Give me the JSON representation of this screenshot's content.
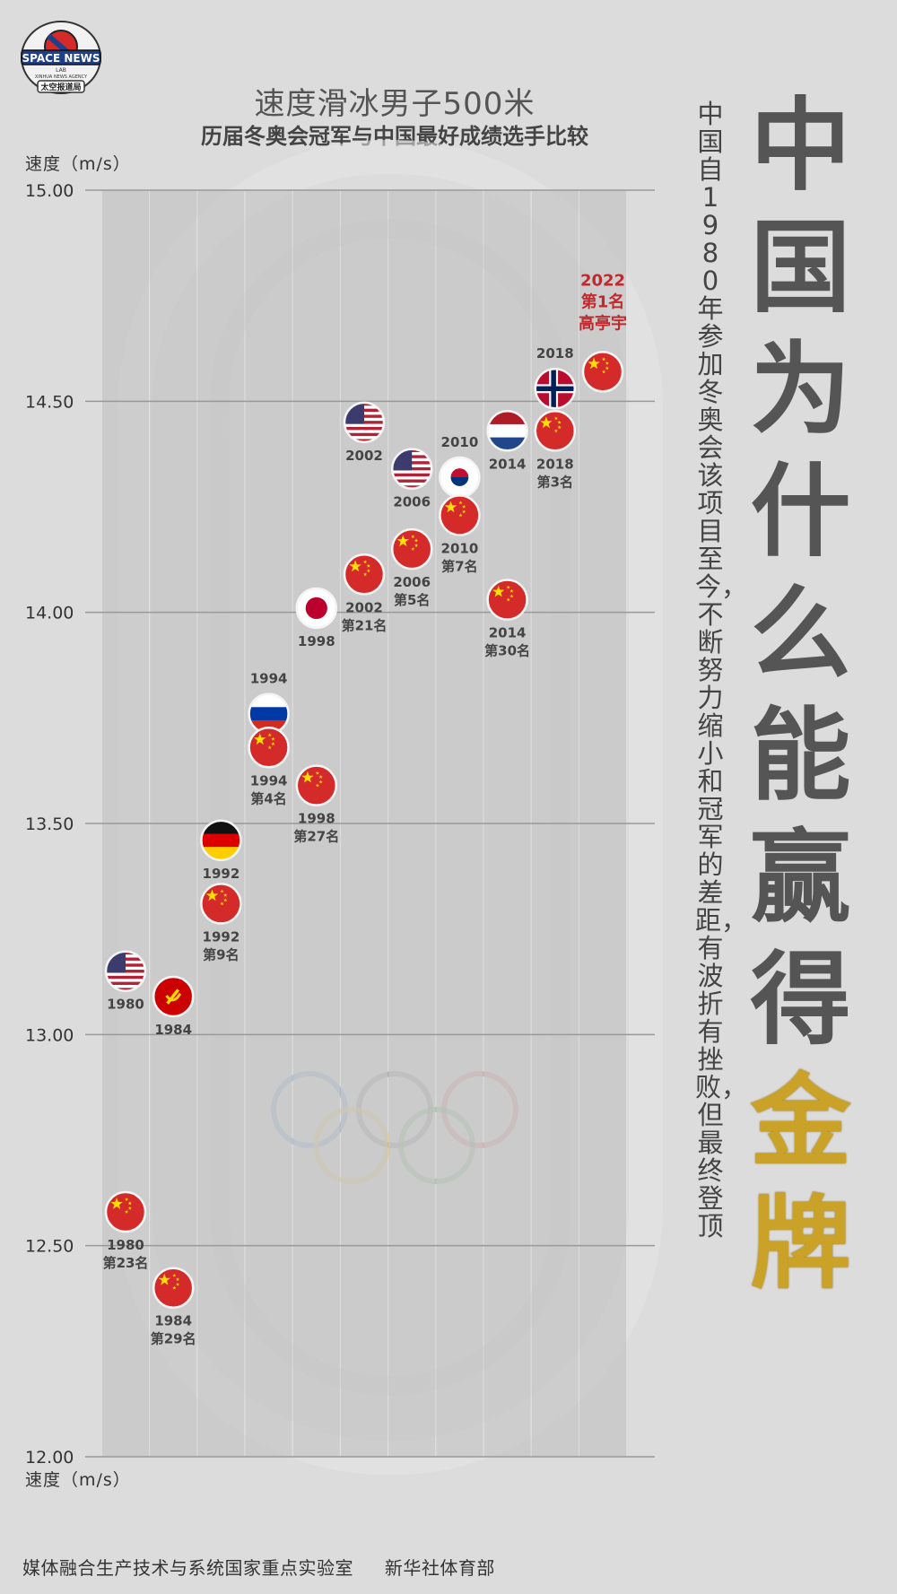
{
  "logo": {
    "name": "SPACE NEWS",
    "sub": "LAB",
    "ring_text": "XINHUA NEWS AGENCY",
    "caption": "太空报道局"
  },
  "title": "速度滑冰男子500米",
  "subtitle": "历届冬奥会冠军与中国最好成绩选手比较",
  "axis_label_top": "速度（m/s）",
  "axis_label_bottom": "速度（m/s）",
  "vertical_text": "中国自1980年参加冬奥会该项目至今，不断努力缩小和冠军的差距，有波折有挫败，但最终登顶",
  "big_title": {
    "part1": "中国为什么能赢得",
    "part2": "金牌"
  },
  "footer": {
    "left": "媒体融合生产技术与系统国家重点实验室",
    "right": "新华社体育部"
  },
  "colors": {
    "background": "#dcdcdc",
    "lane": "#c6c6c6",
    "china_red": "#d42a2a",
    "highlight": "#c0292e",
    "gold": "#c9a227"
  },
  "chart_data": {
    "type": "scatter",
    "ylabel": "速度（m/s）",
    "ylim": [
      12.0,
      15.0
    ],
    "yticks": [
      "12.00",
      "12.50",
      "13.00",
      "13.50",
      "14.00",
      "14.50",
      "15.00"
    ],
    "grid": true,
    "columns": [
      "1980",
      "1984",
      "1992",
      "1994",
      "1998",
      "2002",
      "2006",
      "2010",
      "2014",
      "2018",
      "2022"
    ],
    "series": [
      {
        "points": [
          {
            "x": "1980",
            "y": 13.15,
            "label": "1980",
            "icon": "usa-flag-icon"
          },
          {
            "x": "1984",
            "y": 13.09,
            "label": "1984",
            "icon": "ussr-flag-icon"
          },
          {
            "x": "1992",
            "y": 13.46,
            "label": "1992",
            "icon": "germany-flag-icon"
          },
          {
            "x": "1994",
            "y": 13.76,
            "label": "1994",
            "icon": "russia-flag-icon"
          },
          {
            "x": "1998",
            "y": 14.01,
            "label": "1998",
            "icon": "japan-flag-icon"
          },
          {
            "x": "2002",
            "y": 14.45,
            "label": "2002",
            "icon": "usa-flag-icon"
          },
          {
            "x": "2006",
            "y": 14.34,
            "label": "2006",
            "icon": "usa-flag-icon"
          },
          {
            "x": "2010",
            "y": 14.32,
            "label": "2010",
            "icon": "korea-flag-icon"
          },
          {
            "x": "2014",
            "y": 14.43,
            "label": "2014",
            "icon": "netherlands-flag-icon"
          },
          {
            "x": "2018",
            "y": 14.53,
            "label": "2018",
            "icon": "norway-flag-icon"
          }
        ]
      },
      {
        "points": [
          {
            "x": "1980",
            "y": 12.58,
            "label": "1980",
            "rank": "第23名",
            "icon": "china-flag-icon"
          },
          {
            "x": "1984",
            "y": 12.4,
            "label": "1984",
            "rank": "第29名",
            "icon": "china-flag-icon"
          },
          {
            "x": "1992",
            "y": 13.31,
            "label": "1992",
            "rank": "第9名",
            "icon": "china-flag-icon"
          },
          {
            "x": "1994",
            "y": 13.68,
            "label": "1994",
            "rank": "第4名",
            "icon": "china-flag-icon"
          },
          {
            "x": "1998",
            "y": 13.59,
            "label": "1998",
            "rank": "第27名",
            "icon": "china-flag-icon"
          },
          {
            "x": "2002",
            "y": 14.09,
            "label": "2002",
            "rank": "第21名",
            "icon": "china-flag-icon"
          },
          {
            "x": "2006",
            "y": 14.15,
            "label": "2006",
            "rank": "第5名",
            "icon": "china-flag-icon"
          },
          {
            "x": "2010",
            "y": 14.23,
            "label": "2010",
            "rank": "第7名",
            "icon": "china-flag-icon"
          },
          {
            "x": "2014",
            "y": 14.03,
            "label": "2014",
            "rank": "第30名",
            "icon": "china-flag-icon"
          },
          {
            "x": "2018",
            "y": 14.43,
            "label": "2018",
            "rank": "第3名",
            "icon": "china-flag-icon"
          },
          {
            "x": "2022",
            "y": 14.57,
            "label": "2022",
            "rank": "第1名",
            "athlete": "高亭宇",
            "icon": "china-flag-icon",
            "highlight": true
          }
        ]
      }
    ]
  }
}
